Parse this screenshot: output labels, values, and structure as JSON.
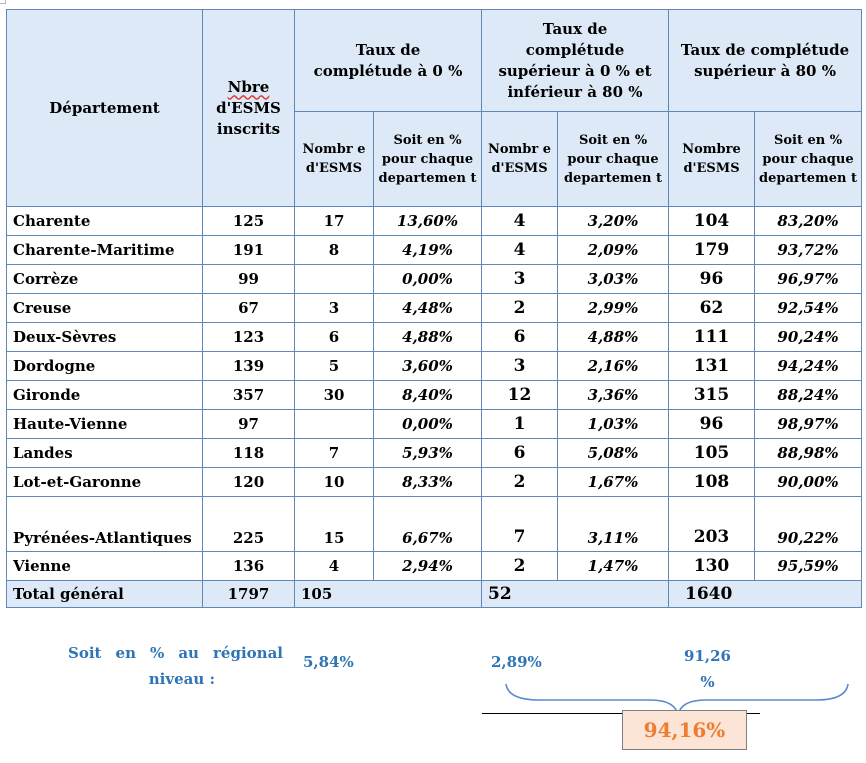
{
  "header": {
    "departement": "Département",
    "nbre": "Nbre",
    "esms_inscrits": "d'ESMS inscrits",
    "group1": "Taux de complétude à 0 %",
    "group2": "Taux de complétude supérieur à 0 % et inférieur à 80 %",
    "group3": "Taux de complétude supérieur  à 80 %",
    "sub_nombre_split": "Nombr e d'ESMS",
    "sub_nombre": "Nombre d'ESMS",
    "sub_pct": "Soit en % pour chaque departemen t"
  },
  "rows": [
    {
      "dep": "Charente",
      "inscrits": "125",
      "n0": "17",
      "p0": "13,60%",
      "n1": "4",
      "p1": "3,20%",
      "n2": "104",
      "p2": "83,20%"
    },
    {
      "dep": "Charente-Maritime",
      "inscrits": "191",
      "n0": "8",
      "p0": "4,19%",
      "n1": "4",
      "p1": "2,09%",
      "n2": "179",
      "p2": "93,72%"
    },
    {
      "dep": "Corrèze",
      "inscrits": "99",
      "n0": "",
      "p0": "0,00%",
      "n1": "3",
      "p1": "3,03%",
      "n2": "96",
      "p2": "96,97%"
    },
    {
      "dep": "Creuse",
      "inscrits": "67",
      "n0": "3",
      "p0": "4,48%",
      "n1": "2",
      "p1": "2,99%",
      "n2": "62",
      "p2": "92,54%"
    },
    {
      "dep": "Deux-Sèvres",
      "inscrits": "123",
      "n0": "6",
      "p0": "4,88%",
      "n1": "6",
      "p1": "4,88%",
      "n2": "111",
      "p2": "90,24%"
    },
    {
      "dep": "Dordogne",
      "inscrits": "139",
      "n0": "5",
      "p0": "3,60%",
      "n1": "3",
      "p1": "2,16%",
      "n2": "131",
      "p2": "94,24%"
    },
    {
      "dep": "Gironde",
      "inscrits": "357",
      "n0": "30",
      "p0": "8,40%",
      "n1": "12",
      "p1": "3,36%",
      "n2": "315",
      "p2": "88,24%"
    },
    {
      "dep": "Haute-Vienne",
      "inscrits": "97",
      "n0": "",
      "p0": "0,00%",
      "n1": "1",
      "p1": "1,03%",
      "n2": "96",
      "p2": "98,97%"
    },
    {
      "dep": "Landes",
      "inscrits": "118",
      "n0": "7",
      "p0": "5,93%",
      "n1": "6",
      "p1": "5,08%",
      "n2": "105",
      "p2": "88,98%"
    },
    {
      "dep": "Lot-et-Garonne",
      "inscrits": "120",
      "n0": "10",
      "p0": "8,33%",
      "n1": "2",
      "p1": "1,67%",
      "n2": "108",
      "p2": "90,00%"
    },
    {
      "dep": "Pyrénées-Atlantiques",
      "inscrits": "225",
      "n0": "15",
      "p0": "6,67%",
      "n1": "7",
      "p1": "3,11%",
      "n2": "203",
      "p2": "90,22%"
    },
    {
      "dep": "Vienne",
      "inscrits": "136",
      "n0": "4",
      "p0": "2,94%",
      "n1": "2",
      "p1": "1,47%",
      "n2": "130",
      "p2": "95,59%"
    }
  ],
  "total": {
    "label": "Total général",
    "inscrits": "1797",
    "n0": "105",
    "n1": "52",
    "n2": "1640"
  },
  "regional": {
    "label_line1": "Soit en % au régional",
    "label_line2": "niveau :",
    "p0": "5,84%",
    "p1": "2,89%",
    "p2_line1": "91,26",
    "p2_line2": "%",
    "sum": "94,16%"
  },
  "colors": {
    "header_bg": "#dde9f6",
    "border": "#5f87b8",
    "note": "#2e75b6",
    "result_text": "#ed7d31",
    "result_bg": "#fce4d6"
  }
}
